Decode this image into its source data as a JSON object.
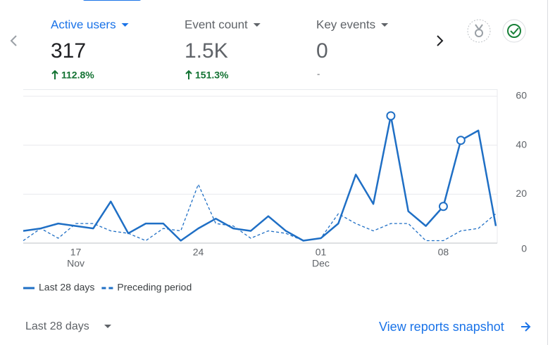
{
  "metrics": [
    {
      "label": "Active users",
      "value": "317",
      "change": "112.8%"
    },
    {
      "label": "Event count",
      "value": "1.5K",
      "change": "151.3%"
    },
    {
      "label": "Key events",
      "value": "0",
      "change": "-"
    }
  ],
  "chart_data": {
    "type": "line",
    "categories": [
      "",
      null,
      null,
      "17",
      null,
      null,
      null,
      null,
      null,
      null,
      "24",
      null,
      null,
      null,
      null,
      null,
      null,
      "01",
      null,
      null,
      null,
      null,
      null,
      null,
      "08",
      null,
      null,
      null
    ],
    "category_months": [
      null,
      null,
      null,
      "Nov",
      null,
      null,
      null,
      null,
      null,
      null,
      null,
      null,
      null,
      null,
      null,
      null,
      null,
      "Dec",
      null,
      null,
      null,
      null,
      null,
      null,
      null,
      null,
      null,
      null
    ],
    "series": [
      {
        "name": "Last 28 days",
        "color": "#1f6fc5",
        "style": "solid",
        "values": [
          5,
          6,
          8,
          7,
          6,
          17,
          4,
          8,
          8,
          1,
          6,
          10,
          6,
          5,
          11,
          5,
          1,
          2,
          8,
          28,
          16,
          52,
          13,
          7,
          15,
          42,
          46,
          7
        ],
        "highlighted": [
          21,
          24,
          25
        ]
      },
      {
        "name": "Preceding period",
        "color": "#1f6fc5",
        "style": "dashed",
        "values": [
          1,
          6,
          2,
          8,
          8,
          5,
          4,
          1,
          6,
          5,
          24,
          8,
          7,
          2,
          5,
          4,
          1,
          2,
          12,
          8,
          5,
          8,
          8,
          1,
          1,
          5,
          6,
          12
        ]
      }
    ],
    "ylim": [
      0,
      60
    ],
    "yticks": [
      0,
      20,
      40,
      60
    ],
    "grid": true
  },
  "footer": {
    "range": "Last 28 days",
    "link": "View reports snapshot"
  }
}
